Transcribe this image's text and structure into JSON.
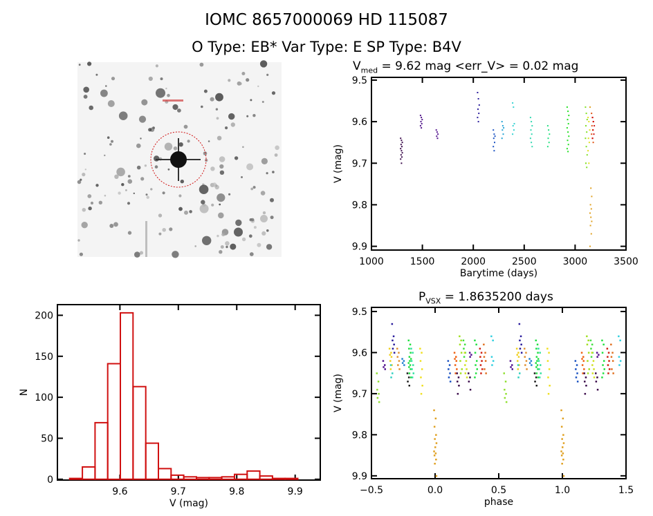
{
  "header": {
    "line1": "IOMC 8657000069    HD 115087",
    "line2": "O Type: EB*  Var Type: E  SP Type: B4V"
  },
  "colors": {
    "histogram": "#d01010",
    "axes": "#000000",
    "aperture_circle": "#d01010"
  },
  "chart_data": [
    {
      "id": "lightcurve",
      "type": "scatter",
      "title_main": "V",
      "title_sub": "med",
      "title_rest": " = 9.62 mag <err_V> = 0.02 mag",
      "xlabel": "Barytime (days)",
      "ylabel": "V (mag)",
      "xlim": [
        1000,
        3500
      ],
      "ylim": [
        9.909,
        9.4934
      ],
      "xticks": [
        "1000",
        "1500",
        "2000",
        "2500",
        "3000",
        "3500"
      ],
      "yticks": [
        "9.5",
        "9.6",
        "9.7",
        "9.8",
        "9.9"
      ],
      "grid": false,
      "color_scale": "rainbow by time",
      "groups": [
        {
          "t": 1295,
          "color": "#3a0a4a",
          "v": [
            9.64,
            9.645,
            9.65,
            9.655,
            9.66,
            9.665,
            9.67,
            9.675,
            9.68,
            9.685,
            9.69,
            9.7
          ]
        },
        {
          "t": 1490,
          "color": "#4e1288",
          "v": [
            9.585,
            9.59,
            9.595,
            9.6,
            9.605,
            9.61,
            9.615
          ]
        },
        {
          "t": 1645,
          "color": "#52128e",
          "v": [
            9.62,
            9.625,
            9.63,
            9.635,
            9.64
          ]
        },
        {
          "t": 2050,
          "color": "#2a1c9c",
          "v": [
            9.53,
            9.545,
            9.56,
            9.57,
            9.58,
            9.59,
            9.6
          ]
        },
        {
          "t": 2205,
          "color": "#1a52c2",
          "v": [
            9.62,
            9.63,
            9.635,
            9.64,
            9.65,
            9.66,
            9.67
          ]
        },
        {
          "t": 2290,
          "color": "#22a2d4",
          "v": [
            9.6,
            9.61,
            9.615,
            9.62,
            9.63,
            9.64
          ]
        },
        {
          "t": 2395,
          "color": "#32d2d2",
          "v": [
            9.555,
            9.565,
            9.605,
            9.61,
            9.62,
            9.63
          ]
        },
        {
          "t": 2570,
          "color": "#30d8b0",
          "v": [
            9.59,
            9.6,
            9.61,
            9.62,
            9.63,
            9.64,
            9.65,
            9.66
          ]
        },
        {
          "t": 2740,
          "color": "#22e080",
          "v": [
            9.61,
            9.62,
            9.63,
            9.64,
            9.65,
            9.66
          ]
        },
        {
          "t": 2930,
          "color": "#22e022",
          "v": [
            9.565,
            9.575,
            9.585,
            9.595,
            9.605,
            9.615,
            9.625,
            9.635,
            9.645,
            9.655,
            9.665,
            9.672
          ]
        },
        {
          "t": 3110,
          "color": "#80e020",
          "v": [
            9.565,
            9.58,
            9.595,
            9.61,
            9.625,
            9.64,
            9.66,
            9.68,
            9.7,
            9.71
          ]
        },
        {
          "t": 3135,
          "color": "#e0e020",
          "v": [
            9.59,
            9.6,
            9.62,
            9.64,
            9.65,
            9.67,
            9.7
          ]
        },
        {
          "t": 3155,
          "color": "#e0a020",
          "v": [
            9.565,
            9.76,
            9.78,
            9.8,
            9.81,
            9.82,
            9.83,
            9.84,
            9.85,
            9.87,
            9.9
          ]
        },
        {
          "t": 3170,
          "color": "#e05010",
          "v": [
            9.58,
            9.59,
            9.6,
            9.61,
            9.62,
            9.63,
            9.64,
            9.65
          ]
        },
        {
          "t": 3180,
          "color": "#d01010",
          "v": [
            9.59,
            9.6,
            9.61,
            9.62,
            9.63,
            9.64
          ]
        }
      ]
    },
    {
      "id": "histogram",
      "type": "bar",
      "xlabel": "V (mag)",
      "ylabel": "N",
      "xlim": [
        9.493,
        9.943
      ],
      "ylim": [
        -1,
        213
      ],
      "xticks": [
        "9.6",
        "9.7",
        "9.8",
        "9.9"
      ],
      "yticks": [
        "0",
        "50",
        "100",
        "150",
        "200"
      ],
      "bin_start": 9.514,
      "bin_width": 0.0217,
      "counts": [
        1,
        15,
        69,
        141,
        203,
        113,
        44,
        13,
        5,
        3,
        2,
        2,
        3,
        6,
        10,
        4,
        1,
        1
      ]
    },
    {
      "id": "phased",
      "type": "scatter",
      "title_main": "P",
      "title_sub": "VSX",
      "title_rest": " = 1.8635200 days",
      "xlabel": "phase",
      "ylabel": "V (mag)",
      "xlim": [
        -0.5,
        1.5
      ],
      "ylim": [
        9.907,
        9.49
      ],
      "xticks": [
        "-0.5",
        "0.0",
        "0.5",
        "1.0",
        "1.5"
      ],
      "yticks": [
        "9.5",
        "9.6",
        "9.7",
        "9.8",
        "9.9"
      ],
      "period_days": 1.86352,
      "repeated_cycle": true,
      "clusters": [
        {
          "phase": -0.45,
          "color": "#90e030",
          "v": [
            9.65,
            9.67,
            9.69,
            9.7,
            9.71,
            9.72
          ]
        },
        {
          "phase": -0.4,
          "color": "#52128e",
          "v": [
            9.62,
            9.63,
            9.635,
            9.64
          ]
        },
        {
          "phase": -0.33,
          "color": "#2a1c9c",
          "v": [
            9.53,
            9.56,
            9.57,
            9.58,
            9.59,
            9.6
          ]
        },
        {
          "phase": -0.35,
          "color": "#f0d020",
          "v": [
            9.59,
            9.6,
            9.605,
            9.61,
            9.62,
            9.63,
            9.64
          ]
        },
        {
          "phase": -0.34,
          "color": "#30d0c0",
          "v": [
            9.63,
            9.65,
            9.66
          ]
        },
        {
          "phase": -0.29,
          "color": "#e09030",
          "v": [
            9.59,
            9.6,
            9.61,
            9.62,
            9.63,
            9.64
          ]
        },
        {
          "phase": -0.25,
          "color": "#2080d0",
          "v": [
            9.615,
            9.62,
            9.625,
            9.63
          ]
        },
        {
          "phase": -0.2,
          "color": "#20e040",
          "v": [
            9.57,
            9.58,
            9.59,
            9.6,
            9.61,
            9.615,
            9.62,
            9.625,
            9.63,
            9.635,
            9.64,
            9.65,
            9.66
          ]
        },
        {
          "phase": -0.21,
          "color": "#1a1a1a",
          "v": [
            9.65,
            9.66,
            9.67,
            9.68
          ]
        },
        {
          "phase": -0.18,
          "color": "#30e0a0",
          "v": [
            9.59,
            9.6,
            9.62,
            9.63,
            9.64,
            9.65,
            9.66
          ]
        },
        {
          "phase": -0.11,
          "color": "#f0e020",
          "v": [
            9.59,
            9.6,
            9.62,
            9.64,
            9.66,
            9.68,
            9.7
          ]
        },
        {
          "phase": 0.0,
          "color": "#e0a020",
          "v": [
            9.74,
            9.76,
            9.78,
            9.8,
            9.81,
            9.82,
            9.83,
            9.84,
            9.845,
            9.85,
            9.86,
            9.87,
            9.9
          ]
        },
        {
          "phase": 0.11,
          "color": "#1a52c2",
          "v": [
            9.62,
            9.63,
            9.64,
            9.65,
            9.66,
            9.67
          ]
        },
        {
          "phase": 0.16,
          "color": "#f06010",
          "v": [
            9.6,
            9.61,
            9.615,
            9.62,
            9.63,
            9.64,
            9.65
          ]
        },
        {
          "phase": 0.18,
          "color": "#3a0a4a",
          "v": [
            9.65,
            9.66,
            9.67,
            9.68,
            9.7
          ]
        },
        {
          "phase": 0.2,
          "color": "#a0e020",
          "v": [
            9.56,
            9.57,
            9.58,
            9.6,
            9.62,
            9.64,
            9.65
          ]
        },
        {
          "phase": 0.23,
          "color": "#40e040",
          "v": [
            9.57,
            9.58,
            9.59,
            9.6,
            9.61
          ]
        },
        {
          "phase": 0.24,
          "color": "#d0e020",
          "v": [
            9.6,
            9.62,
            9.63,
            9.64,
            9.65,
            9.66
          ]
        },
        {
          "phase": 0.27,
          "color": "#3a0a4a",
          "v": [
            9.65,
            9.66,
            9.67,
            9.69
          ]
        },
        {
          "phase": 0.28,
          "color": "#52128e",
          "v": [
            9.6,
            9.605,
            9.61
          ]
        },
        {
          "phase": 0.32,
          "color": "#20e040",
          "v": [
            9.57,
            9.58,
            9.6,
            9.62,
            9.63,
            9.64,
            9.65,
            9.66
          ]
        },
        {
          "phase": 0.36,
          "color": "#d02010",
          "v": [
            9.59,
            9.6,
            9.61,
            9.62,
            9.63,
            9.64,
            9.65
          ]
        },
        {
          "phase": 0.39,
          "color": "#e07020",
          "v": [
            9.58,
            9.6,
            9.61,
            9.62,
            9.64,
            9.65
          ]
        },
        {
          "phase": 0.45,
          "color": "#30d0e0",
          "v": [
            9.56,
            9.57,
            9.61,
            9.62,
            9.63
          ]
        }
      ]
    }
  ]
}
